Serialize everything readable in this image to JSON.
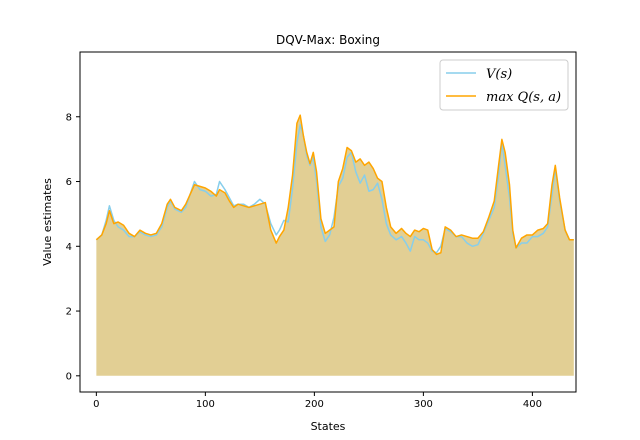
{
  "chart_data": {
    "type": "line",
    "title": "DQV-Max: Boxing",
    "xlabel": "States",
    "ylabel": "Value estimates",
    "xlim": [
      -15,
      440
    ],
    "ylim": [
      -0.5,
      10
    ],
    "xticks": [
      0,
      100,
      200,
      300,
      400
    ],
    "yticks": [
      0,
      2,
      4,
      6,
      8
    ],
    "legend_position": "top-right",
    "grid": false,
    "fill_under": "max Q(s, a)",
    "fill_color": "#e2cf94",
    "series": [
      {
        "name": "V(s)",
        "color": "#87ceeb",
        "points": [
          [
            0,
            4.2
          ],
          [
            5,
            4.35
          ],
          [
            9,
            4.8
          ],
          [
            12,
            5.25
          ],
          [
            16,
            4.8
          ],
          [
            20,
            4.6
          ],
          [
            25,
            4.5
          ],
          [
            30,
            4.3
          ],
          [
            35,
            4.3
          ],
          [
            40,
            4.45
          ],
          [
            45,
            4.35
          ],
          [
            50,
            4.3
          ],
          [
            55,
            4.35
          ],
          [
            60,
            4.6
          ],
          [
            65,
            5.2
          ],
          [
            68,
            5.4
          ],
          [
            72,
            5.15
          ],
          [
            78,
            5.05
          ],
          [
            82,
            5.2
          ],
          [
            86,
            5.6
          ],
          [
            90,
            6.0
          ],
          [
            95,
            5.75
          ],
          [
            100,
            5.7
          ],
          [
            105,
            5.55
          ],
          [
            110,
            5.6
          ],
          [
            113,
            6.0
          ],
          [
            118,
            5.75
          ],
          [
            122,
            5.5
          ],
          [
            126,
            5.25
          ],
          [
            130,
            5.3
          ],
          [
            135,
            5.3
          ],
          [
            140,
            5.2
          ],
          [
            145,
            5.3
          ],
          [
            150,
            5.45
          ],
          [
            155,
            5.3
          ],
          [
            160,
            4.7
          ],
          [
            165,
            4.35
          ],
          [
            168,
            4.5
          ],
          [
            172,
            4.8
          ],
          [
            176,
            4.75
          ],
          [
            180,
            5.8
          ],
          [
            184,
            7.2
          ],
          [
            187,
            7.75
          ],
          [
            190,
            7.4
          ],
          [
            193,
            6.8
          ],
          [
            196,
            6.5
          ],
          [
            199,
            6.75
          ],
          [
            202,
            6.0
          ],
          [
            206,
            4.6
          ],
          [
            210,
            4.15
          ],
          [
            214,
            4.35
          ],
          [
            218,
            4.9
          ],
          [
            222,
            5.85
          ],
          [
            226,
            6.1
          ],
          [
            230,
            6.75
          ],
          [
            234,
            6.9
          ],
          [
            238,
            6.3
          ],
          [
            242,
            5.95
          ],
          [
            246,
            6.2
          ],
          [
            250,
            5.7
          ],
          [
            254,
            5.75
          ],
          [
            258,
            5.95
          ],
          [
            262,
            5.45
          ],
          [
            266,
            4.7
          ],
          [
            270,
            4.35
          ],
          [
            275,
            4.2
          ],
          [
            280,
            4.3
          ],
          [
            284,
            4.1
          ],
          [
            288,
            3.85
          ],
          [
            292,
            4.3
          ],
          [
            296,
            4.2
          ],
          [
            300,
            4.2
          ],
          [
            304,
            4.1
          ],
          [
            308,
            3.85
          ],
          [
            312,
            3.8
          ],
          [
            316,
            4.0
          ],
          [
            320,
            4.55
          ],
          [
            325,
            4.45
          ],
          [
            330,
            4.3
          ],
          [
            335,
            4.3
          ],
          [
            340,
            4.1
          ],
          [
            345,
            4.0
          ],
          [
            350,
            4.05
          ],
          [
            355,
            4.4
          ],
          [
            360,
            4.8
          ],
          [
            365,
            5.2
          ],
          [
            369,
            6.2
          ],
          [
            372,
            7.2
          ],
          [
            375,
            6.5
          ],
          [
            379,
            5.5
          ],
          [
            382,
            4.4
          ],
          [
            385,
            3.95
          ],
          [
            390,
            4.1
          ],
          [
            395,
            4.1
          ],
          [
            400,
            4.3
          ],
          [
            405,
            4.3
          ],
          [
            410,
            4.4
          ],
          [
            414,
            4.6
          ],
          [
            418,
            5.6
          ],
          [
            421,
            6.4
          ],
          [
            425,
            5.4
          ],
          [
            430,
            4.5
          ],
          [
            434,
            4.2
          ],
          [
            438,
            4.2
          ]
        ]
      },
      {
        "name": "max Q(s, a)",
        "color": "#ffa500",
        "points": [
          [
            0,
            4.2
          ],
          [
            5,
            4.35
          ],
          [
            9,
            4.7
          ],
          [
            12,
            5.1
          ],
          [
            16,
            4.7
          ],
          [
            20,
            4.75
          ],
          [
            25,
            4.65
          ],
          [
            30,
            4.4
          ],
          [
            35,
            4.3
          ],
          [
            40,
            4.5
          ],
          [
            45,
            4.4
          ],
          [
            50,
            4.35
          ],
          [
            55,
            4.4
          ],
          [
            60,
            4.7
          ],
          [
            65,
            5.3
          ],
          [
            68,
            5.45
          ],
          [
            72,
            5.2
          ],
          [
            78,
            5.1
          ],
          [
            82,
            5.3
          ],
          [
            86,
            5.6
          ],
          [
            90,
            5.9
          ],
          [
            95,
            5.85
          ],
          [
            100,
            5.8
          ],
          [
            105,
            5.7
          ],
          [
            110,
            5.55
          ],
          [
            113,
            5.75
          ],
          [
            118,
            5.65
          ],
          [
            122,
            5.4
          ],
          [
            126,
            5.2
          ],
          [
            130,
            5.3
          ],
          [
            135,
            5.25
          ],
          [
            140,
            5.2
          ],
          [
            145,
            5.25
          ],
          [
            150,
            5.3
          ],
          [
            155,
            5.35
          ],
          [
            160,
            4.5
          ],
          [
            165,
            4.1
          ],
          [
            168,
            4.3
          ],
          [
            172,
            4.5
          ],
          [
            176,
            5.2
          ],
          [
            180,
            6.2
          ],
          [
            184,
            7.8
          ],
          [
            187,
            8.05
          ],
          [
            190,
            7.4
          ],
          [
            193,
            6.9
          ],
          [
            196,
            6.55
          ],
          [
            199,
            6.9
          ],
          [
            202,
            6.3
          ],
          [
            206,
            4.85
          ],
          [
            210,
            4.4
          ],
          [
            214,
            4.5
          ],
          [
            218,
            4.6
          ],
          [
            222,
            6.0
          ],
          [
            226,
            6.4
          ],
          [
            230,
            7.05
          ],
          [
            234,
            6.95
          ],
          [
            238,
            6.6
          ],
          [
            242,
            6.7
          ],
          [
            246,
            6.5
          ],
          [
            250,
            6.6
          ],
          [
            254,
            6.4
          ],
          [
            258,
            6.1
          ],
          [
            262,
            6.0
          ],
          [
            266,
            5.2
          ],
          [
            270,
            4.6
          ],
          [
            275,
            4.4
          ],
          [
            280,
            4.55
          ],
          [
            284,
            4.4
          ],
          [
            288,
            4.3
          ],
          [
            292,
            4.5
          ],
          [
            296,
            4.45
          ],
          [
            300,
            4.55
          ],
          [
            304,
            4.5
          ],
          [
            308,
            3.9
          ],
          [
            312,
            3.75
          ],
          [
            316,
            3.8
          ],
          [
            320,
            4.6
          ],
          [
            325,
            4.5
          ],
          [
            330,
            4.3
          ],
          [
            335,
            4.35
          ],
          [
            340,
            4.3
          ],
          [
            345,
            4.25
          ],
          [
            350,
            4.25
          ],
          [
            355,
            4.45
          ],
          [
            360,
            4.9
          ],
          [
            365,
            5.4
          ],
          [
            369,
            6.5
          ],
          [
            372,
            7.3
          ],
          [
            375,
            6.9
          ],
          [
            379,
            5.9
          ],
          [
            382,
            4.5
          ],
          [
            385,
            3.95
          ],
          [
            390,
            4.25
          ],
          [
            395,
            4.35
          ],
          [
            400,
            4.35
          ],
          [
            405,
            4.5
          ],
          [
            410,
            4.55
          ],
          [
            414,
            4.7
          ],
          [
            418,
            5.9
          ],
          [
            421,
            6.5
          ],
          [
            425,
            5.5
          ],
          [
            430,
            4.5
          ],
          [
            434,
            4.2
          ],
          [
            438,
            4.2
          ]
        ]
      }
    ]
  }
}
